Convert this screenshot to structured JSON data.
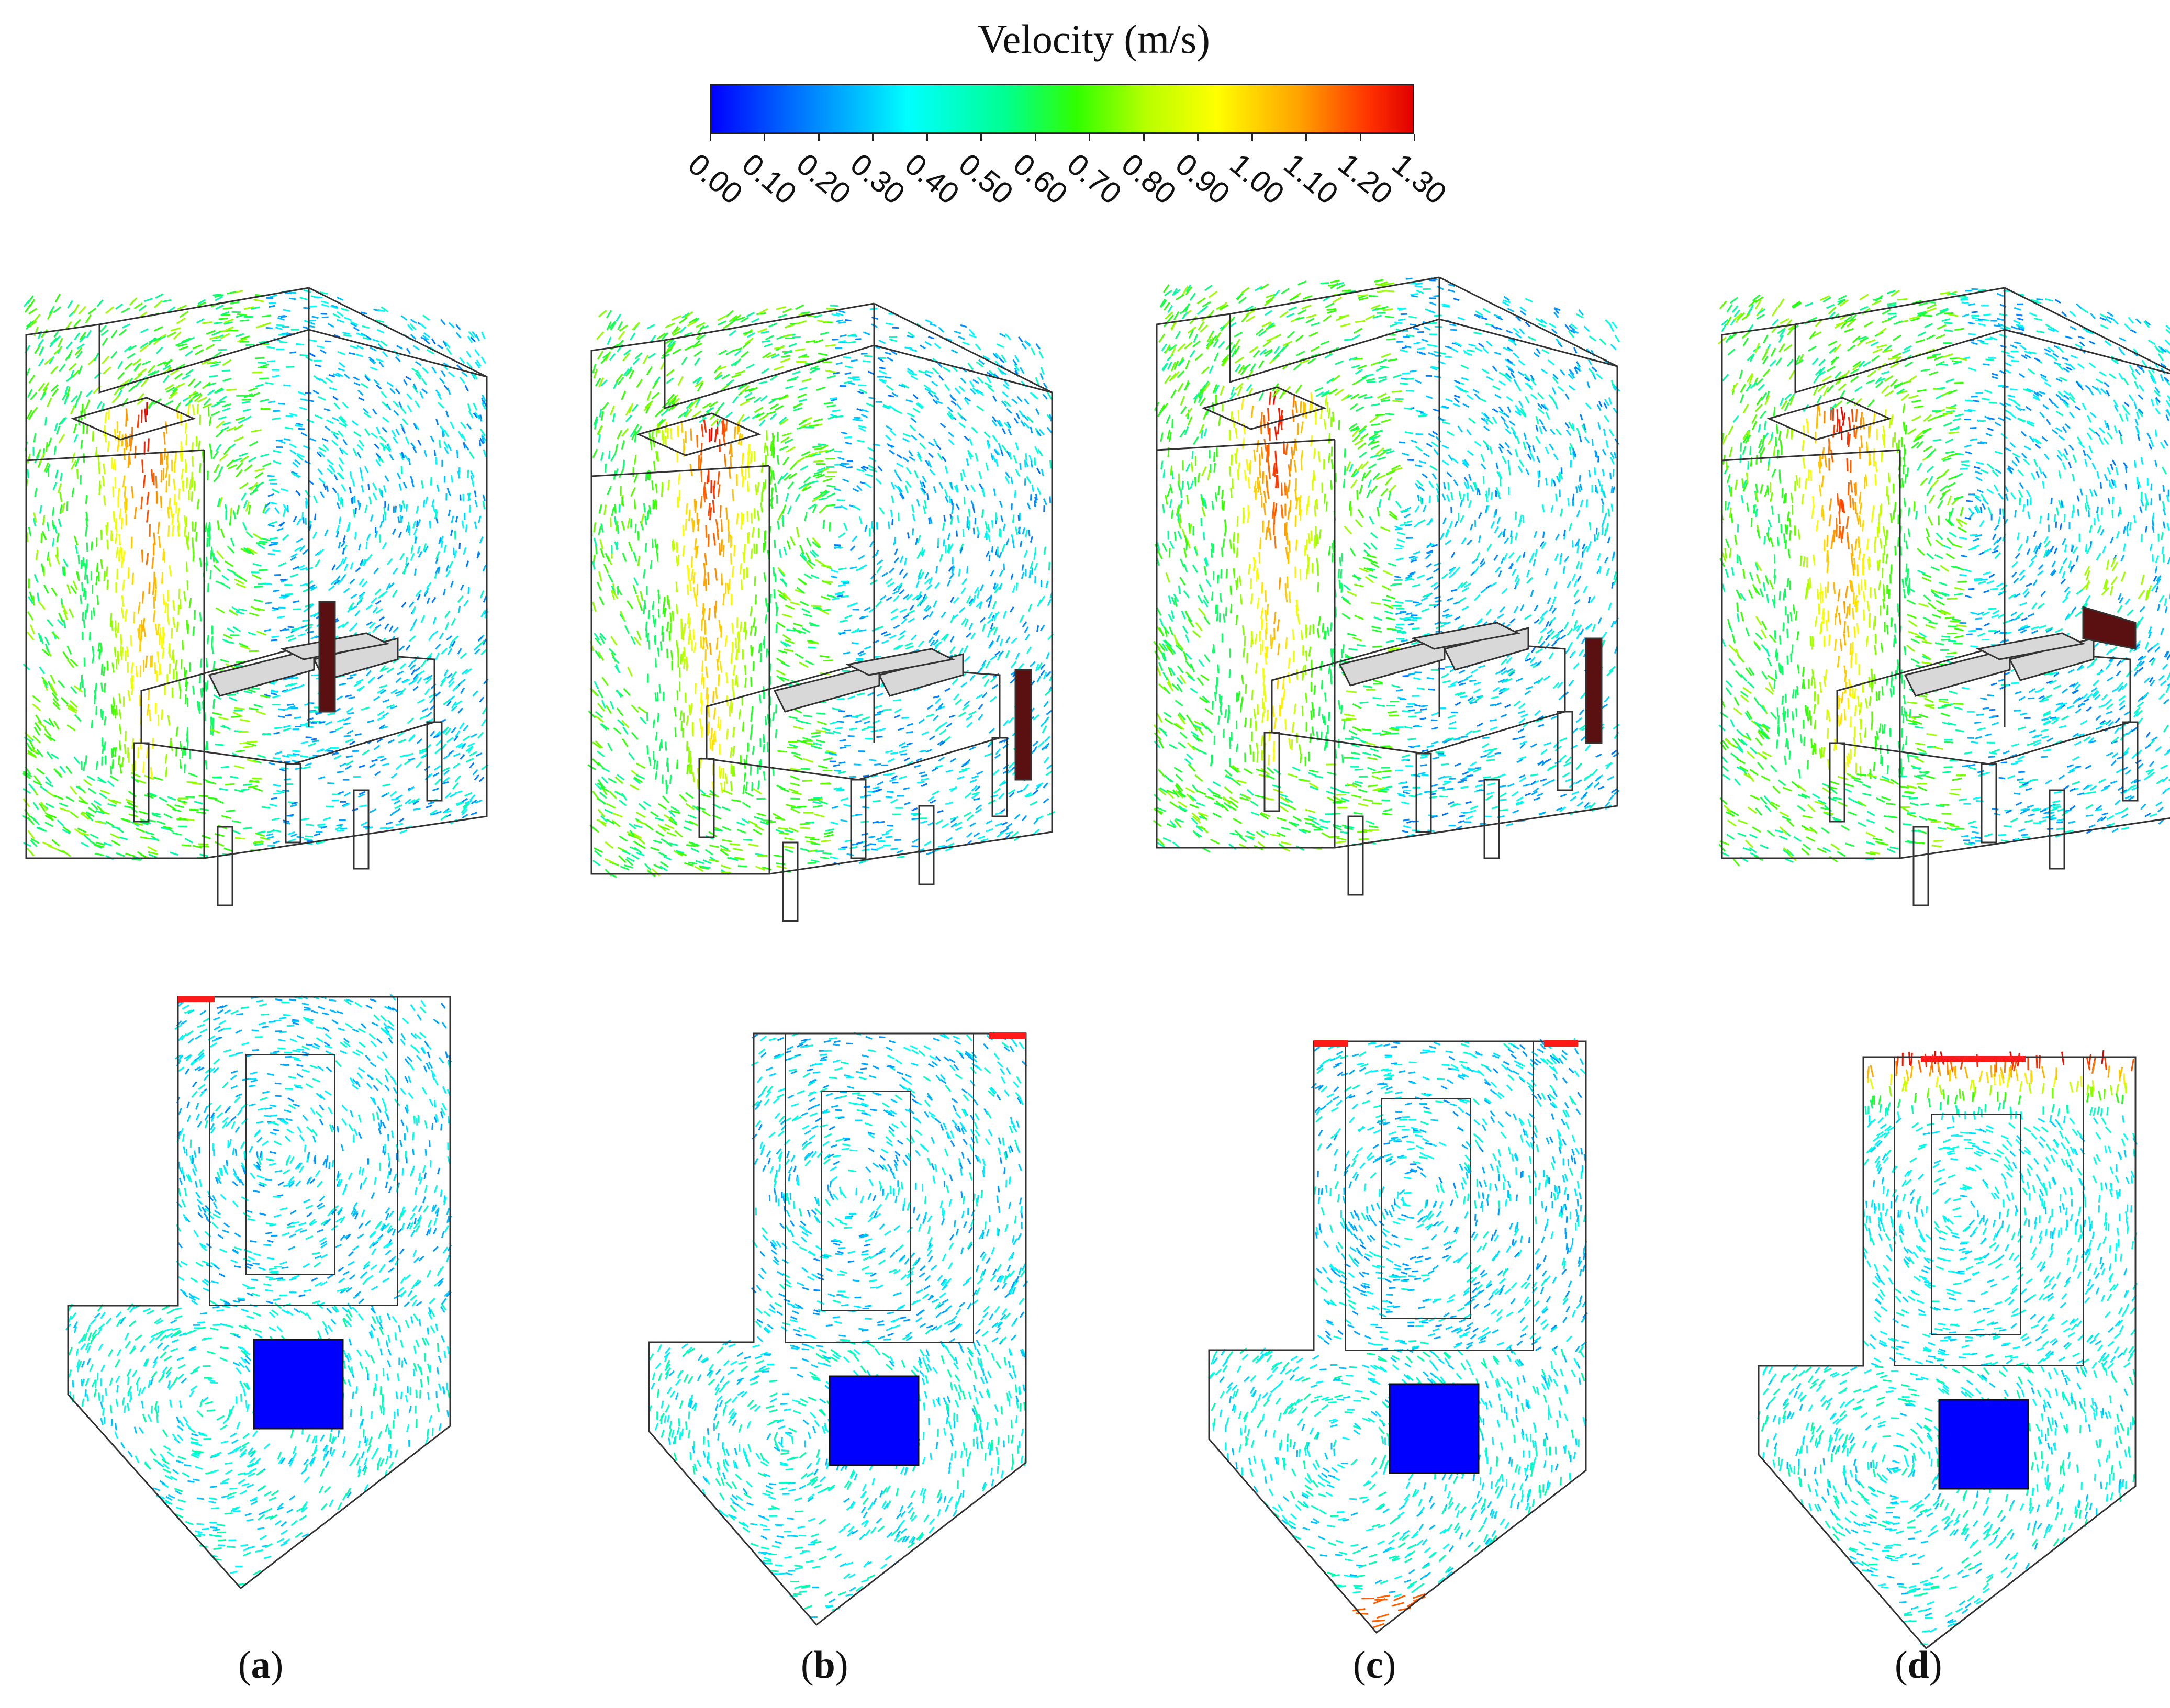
{
  "colorbar": {
    "title": "Velocity (m/s)",
    "ticks": [
      "0.00",
      "0.10",
      "0.20",
      "0.30",
      "0.40",
      "0.50",
      "0.60",
      "0.70",
      "0.80",
      "0.90",
      "1.00",
      "1.10",
      "1.20",
      "1.30"
    ],
    "min": 0.0,
    "max": 1.3,
    "colormap": [
      "#0000ff",
      "#00c8ff",
      "#00ffff",
      "#30ff00",
      "#ffff00",
      "#ff3000",
      "#e00000"
    ]
  },
  "panels": [
    {
      "id": "a",
      "open": "(",
      "letter": "a",
      "close": ")"
    },
    {
      "id": "b",
      "open": "(",
      "letter": "b",
      "close": ")"
    },
    {
      "id": "c",
      "open": "(",
      "letter": "c",
      "close": ")"
    },
    {
      "id": "d",
      "open": "(",
      "letter": "d",
      "close": ")"
    }
  ],
  "colors": {
    "outline": "#333333",
    "heater": "#0000ff",
    "inlet": "#ff1a1a",
    "panel_dark": "#5a1010",
    "equipment": "#d8d8d8"
  }
}
